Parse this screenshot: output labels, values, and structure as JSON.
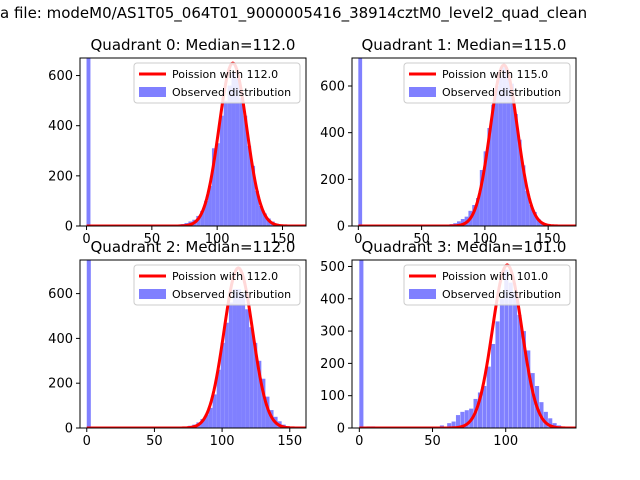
{
  "figure": {
    "suptitle": "a file: modeM0/AS1T05_064T01_9000005416_38914cztM0_level2_quad_clean"
  },
  "chart_data": [
    {
      "type": "bar",
      "title": "Quadrant 0: Median=112.0",
      "xlim": [
        -5,
        168
      ],
      "ylim": [
        0,
        670
      ],
      "xticks": [
        0,
        50,
        100,
        150
      ],
      "yticks": [
        0,
        200,
        400,
        600
      ],
      "grid": false,
      "legend_position": "top-right",
      "hist_color": "#8080ff",
      "curve_color": "#ff0000",
      "series": [
        {
          "name": "Poission with 112.0",
          "kind": "poisson",
          "mean": 112.0,
          "peak": 650
        },
        {
          "name": "Observed distribution",
          "kind": "histogram",
          "bin_width": 3,
          "bins": [
            {
              "x": 0,
              "y": 670
            },
            {
              "x": 60,
              "y": 2
            },
            {
              "x": 63,
              "y": 3
            },
            {
              "x": 66,
              "y": 4
            },
            {
              "x": 69,
              "y": 6
            },
            {
              "x": 72,
              "y": 8
            },
            {
              "x": 75,
              "y": 12
            },
            {
              "x": 78,
              "y": 18
            },
            {
              "x": 81,
              "y": 25
            },
            {
              "x": 84,
              "y": 40
            },
            {
              "x": 87,
              "y": 60
            },
            {
              "x": 90,
              "y": 100
            },
            {
              "x": 93,
              "y": 160
            },
            {
              "x": 96,
              "y": 310
            },
            {
              "x": 99,
              "y": 330
            },
            {
              "x": 102,
              "y": 440
            },
            {
              "x": 105,
              "y": 500
            },
            {
              "x": 108,
              "y": 560
            },
            {
              "x": 111,
              "y": 610
            },
            {
              "x": 114,
              "y": 590
            },
            {
              "x": 117,
              "y": 510
            },
            {
              "x": 120,
              "y": 440
            },
            {
              "x": 123,
              "y": 320
            },
            {
              "x": 126,
              "y": 240
            },
            {
              "x": 129,
              "y": 140
            },
            {
              "x": 132,
              "y": 80
            },
            {
              "x": 135,
              "y": 50
            },
            {
              "x": 138,
              "y": 30
            },
            {
              "x": 141,
              "y": 18
            },
            {
              "x": 144,
              "y": 10
            },
            {
              "x": 147,
              "y": 5
            },
            {
              "x": 150,
              "y": 3
            }
          ]
        }
      ]
    },
    {
      "type": "bar",
      "title": "Quadrant 1: Median=115.0",
      "xlim": [
        -5,
        172
      ],
      "ylim": [
        0,
        720
      ],
      "xticks": [
        0,
        50,
        100,
        150
      ],
      "yticks": [
        0,
        200,
        400,
        600
      ],
      "grid": false,
      "legend_position": "top-right",
      "hist_color": "#8080ff",
      "curve_color": "#ff0000",
      "series": [
        {
          "name": "Poission with 115.0",
          "kind": "poisson",
          "mean": 115.0,
          "peak": 690
        },
        {
          "name": "Observed distribution",
          "kind": "histogram",
          "bin_width": 3,
          "bins": [
            {
              "x": 0,
              "y": 720
            },
            {
              "x": 66,
              "y": 3
            },
            {
              "x": 69,
              "y": 5
            },
            {
              "x": 72,
              "y": 8
            },
            {
              "x": 75,
              "y": 12
            },
            {
              "x": 78,
              "y": 20
            },
            {
              "x": 81,
              "y": 30
            },
            {
              "x": 84,
              "y": 40
            },
            {
              "x": 87,
              "y": 65
            },
            {
              "x": 90,
              "y": 90
            },
            {
              "x": 93,
              "y": 120
            },
            {
              "x": 96,
              "y": 240
            },
            {
              "x": 99,
              "y": 320
            },
            {
              "x": 102,
              "y": 420
            },
            {
              "x": 105,
              "y": 520
            },
            {
              "x": 108,
              "y": 600
            },
            {
              "x": 111,
              "y": 640
            },
            {
              "x": 114,
              "y": 680
            },
            {
              "x": 117,
              "y": 650
            },
            {
              "x": 120,
              "y": 610
            },
            {
              "x": 123,
              "y": 480
            },
            {
              "x": 126,
              "y": 370
            },
            {
              "x": 129,
              "y": 260
            },
            {
              "x": 132,
              "y": 150
            },
            {
              "x": 135,
              "y": 90
            },
            {
              "x": 138,
              "y": 60
            },
            {
              "x": 141,
              "y": 30
            },
            {
              "x": 144,
              "y": 15
            },
            {
              "x": 147,
              "y": 8
            },
            {
              "x": 150,
              "y": 4
            }
          ]
        }
      ]
    },
    {
      "type": "bar",
      "title": "Quadrant 2: Median=112.0",
      "xlim": [
        -5,
        162
      ],
      "ylim": [
        0,
        750
      ],
      "xticks": [
        0,
        50,
        100,
        150
      ],
      "yticks": [
        0,
        200,
        400,
        600
      ],
      "grid": false,
      "legend_position": "top-right",
      "hist_color": "#8080ff",
      "curve_color": "#ff0000",
      "series": [
        {
          "name": "Poission with 112.0",
          "kind": "poisson",
          "mean": 112.0,
          "peak": 715
        },
        {
          "name": "Observed distribution",
          "kind": "histogram",
          "bin_width": 3,
          "bins": [
            {
              "x": 0,
              "y": 750
            },
            {
              "x": 66,
              "y": 2
            },
            {
              "x": 69,
              "y": 4
            },
            {
              "x": 72,
              "y": 6
            },
            {
              "x": 75,
              "y": 10
            },
            {
              "x": 78,
              "y": 15
            },
            {
              "x": 81,
              "y": 25
            },
            {
              "x": 84,
              "y": 40
            },
            {
              "x": 87,
              "y": 60
            },
            {
              "x": 90,
              "y": 90
            },
            {
              "x": 93,
              "y": 150
            },
            {
              "x": 96,
              "y": 260
            },
            {
              "x": 99,
              "y": 380
            },
            {
              "x": 102,
              "y": 470
            },
            {
              "x": 105,
              "y": 560
            },
            {
              "x": 108,
              "y": 620
            },
            {
              "x": 111,
              "y": 620
            },
            {
              "x": 114,
              "y": 600
            },
            {
              "x": 117,
              "y": 530
            },
            {
              "x": 120,
              "y": 450
            },
            {
              "x": 123,
              "y": 380
            },
            {
              "x": 126,
              "y": 300
            },
            {
              "x": 129,
              "y": 220
            },
            {
              "x": 132,
              "y": 140
            },
            {
              "x": 135,
              "y": 80
            },
            {
              "x": 138,
              "y": 50
            },
            {
              "x": 141,
              "y": 30
            },
            {
              "x": 144,
              "y": 15
            },
            {
              "x": 147,
              "y": 8
            },
            {
              "x": 150,
              "y": 4
            }
          ]
        }
      ]
    },
    {
      "type": "bar",
      "title": "Quadrant 3: Median=101.0",
      "xlim": [
        -5,
        148
      ],
      "ylim": [
        0,
        520
      ],
      "xticks": [
        0,
        50,
        100
      ],
      "yticks": [
        0,
        100,
        200,
        300,
        400,
        500
      ],
      "grid": false,
      "legend_position": "top-right",
      "hist_color": "#8080ff",
      "curve_color": "#ff0000",
      "series": [
        {
          "name": "Poission with 101.0",
          "kind": "poisson",
          "mean": 101.0,
          "peak": 505
        },
        {
          "name": "Observed distribution",
          "kind": "histogram",
          "bin_width": 2.8,
          "bins": [
            {
              "x": 0,
              "y": 520
            },
            {
              "x": 5,
              "y": 5
            },
            {
              "x": 8,
              "y": 5
            },
            {
              "x": 30,
              "y": 3
            },
            {
              "x": 45,
              "y": 4
            },
            {
              "x": 55,
              "y": 8
            },
            {
              "x": 60,
              "y": 15
            },
            {
              "x": 63,
              "y": 20
            },
            {
              "x": 66,
              "y": 40
            },
            {
              "x": 69,
              "y": 50
            },
            {
              "x": 72,
              "y": 55
            },
            {
              "x": 75,
              "y": 60
            },
            {
              "x": 78,
              "y": 90
            },
            {
              "x": 81,
              "y": 110
            },
            {
              "x": 84,
              "y": 130
            },
            {
              "x": 87,
              "y": 190
            },
            {
              "x": 90,
              "y": 260
            },
            {
              "x": 93,
              "y": 330
            },
            {
              "x": 96,
              "y": 400
            },
            {
              "x": 99,
              "y": 490
            },
            {
              "x": 102,
              "y": 450
            },
            {
              "x": 105,
              "y": 420
            },
            {
              "x": 108,
              "y": 350
            },
            {
              "x": 111,
              "y": 300
            },
            {
              "x": 114,
              "y": 240
            },
            {
              "x": 117,
              "y": 170
            },
            {
              "x": 120,
              "y": 130
            },
            {
              "x": 123,
              "y": 80
            },
            {
              "x": 126,
              "y": 50
            },
            {
              "x": 129,
              "y": 30
            },
            {
              "x": 132,
              "y": 15
            },
            {
              "x": 135,
              "y": 8
            }
          ]
        }
      ]
    }
  ]
}
